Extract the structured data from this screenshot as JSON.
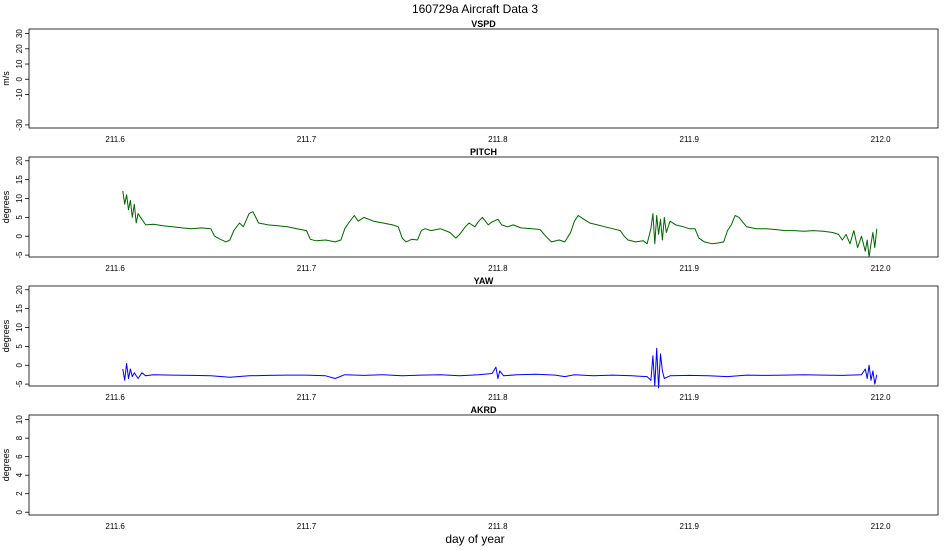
{
  "title": "160729a   Aircraft Data 3",
  "xlabel": "day of year",
  "chart_data": [
    {
      "type": "line",
      "title": "VSPD",
      "ylabel": "m/s",
      "xlim": [
        211.555,
        212.03
      ],
      "ylim": [
        -32,
        33
      ],
      "xticks": [
        211.6,
        211.7,
        211.8,
        211.9,
        212.0
      ],
      "xtick_labels": [
        "211.6",
        "211.7",
        "211.8",
        "211.9",
        "212.0"
      ],
      "yticks": [
        -30,
        -10,
        0,
        10,
        20,
        30
      ],
      "ytick_labels": [
        "-30",
        "-10",
        "0",
        "10",
        "20",
        "30"
      ],
      "grid": false,
      "series": []
    },
    {
      "type": "line",
      "title": "PITCH",
      "ylabel": "degrees",
      "xlim": [
        211.555,
        212.03
      ],
      "ylim": [
        -5.5,
        21
      ],
      "xticks": [
        211.6,
        211.7,
        211.8,
        211.9,
        212.0
      ],
      "xtick_labels": [
        "211.6",
        "211.7",
        "211.8",
        "211.9",
        "212.0"
      ],
      "yticks": [
        -5,
        0,
        5,
        10,
        15,
        20
      ],
      "ytick_labels": [
        "-5",
        "0",
        "5",
        "10",
        "15",
        "20"
      ],
      "grid": false,
      "series": [
        {
          "color": "#006400",
          "points": [
            [
              211.604,
              12.0
            ],
            [
              211.605,
              8.5
            ],
            [
              211.606,
              11.0
            ],
            [
              211.607,
              7.0
            ],
            [
              211.608,
              9.5
            ],
            [
              211.609,
              5.0
            ],
            [
              211.61,
              8.5
            ],
            [
              211.611,
              3.5
            ],
            [
              211.612,
              6.0
            ],
            [
              211.614,
              4.5
            ],
            [
              211.616,
              3.0
            ],
            [
              211.62,
              3.2
            ],
            [
              211.625,
              2.8
            ],
            [
              211.63,
              2.5
            ],
            [
              211.635,
              2.2
            ],
            [
              211.64,
              2.0
            ],
            [
              211.645,
              2.2
            ],
            [
              211.65,
              2.0
            ],
            [
              211.652,
              0.0
            ],
            [
              211.655,
              -0.8
            ],
            [
              211.658,
              -1.5
            ],
            [
              211.66,
              -1.0
            ],
            [
              211.662,
              1.5
            ],
            [
              211.665,
              3.5
            ],
            [
              211.667,
              2.5
            ],
            [
              211.67,
              6.0
            ],
            [
              211.672,
              6.5
            ],
            [
              211.675,
              3.5
            ],
            [
              211.68,
              3.0
            ],
            [
              211.685,
              2.8
            ],
            [
              211.69,
              2.5
            ],
            [
              211.695,
              2.0
            ],
            [
              211.7,
              1.5
            ],
            [
              211.702,
              -0.8
            ],
            [
              211.705,
              -1.2
            ],
            [
              211.71,
              -1.0
            ],
            [
              211.715,
              -1.5
            ],
            [
              211.718,
              -1.0
            ],
            [
              211.72,
              2.0
            ],
            [
              211.722,
              3.5
            ],
            [
              211.725,
              5.5
            ],
            [
              211.727,
              4.0
            ],
            [
              211.73,
              5.0
            ],
            [
              211.735,
              4.0
            ],
            [
              211.74,
              3.5
            ],
            [
              211.745,
              3.0
            ],
            [
              211.748,
              2.5
            ],
            [
              211.75,
              -0.5
            ],
            [
              211.752,
              -1.5
            ],
            [
              211.755,
              -0.8
            ],
            [
              211.758,
              -1.0
            ],
            [
              211.76,
              1.5
            ],
            [
              211.762,
              2.0
            ],
            [
              211.765,
              1.5
            ],
            [
              211.77,
              2.0
            ],
            [
              211.775,
              1.0
            ],
            [
              211.778,
              -0.5
            ],
            [
              211.78,
              0.5
            ],
            [
              211.783,
              2.5
            ],
            [
              211.785,
              3.5
            ],
            [
              211.788,
              2.5
            ],
            [
              211.79,
              4.0
            ],
            [
              211.792,
              5.0
            ],
            [
              211.795,
              3.0
            ],
            [
              211.797,
              3.8
            ],
            [
              211.8,
              4.5
            ],
            [
              211.802,
              3.0
            ],
            [
              211.805,
              2.5
            ],
            [
              211.808,
              3.0
            ],
            [
              211.812,
              2.2
            ],
            [
              211.818,
              2.0
            ],
            [
              211.822,
              1.8
            ],
            [
              211.825,
              0.0
            ],
            [
              211.828,
              -1.5
            ],
            [
              211.832,
              -1.0
            ],
            [
              211.835,
              -1.5
            ],
            [
              211.838,
              1.0
            ],
            [
              211.84,
              4.0
            ],
            [
              211.842,
              5.5
            ],
            [
              211.845,
              4.5
            ],
            [
              211.848,
              3.5
            ],
            [
              211.852,
              3.0
            ],
            [
              211.856,
              2.5
            ],
            [
              211.86,
              2.0
            ],
            [
              211.864,
              1.5
            ],
            [
              211.866,
              0.0
            ],
            [
              211.868,
              -1.0
            ],
            [
              211.872,
              -1.5
            ],
            [
              211.876,
              -1.2
            ],
            [
              211.878,
              -2.0
            ],
            [
              211.88,
              2.0
            ],
            [
              211.881,
              6.0
            ],
            [
              211.882,
              -2.0
            ],
            [
              211.883,
              5.5
            ],
            [
              211.884,
              0.5
            ],
            [
              211.885,
              4.5
            ],
            [
              211.886,
              -1.0
            ],
            [
              211.887,
              5.0
            ],
            [
              211.888,
              1.0
            ],
            [
              211.89,
              4.0
            ],
            [
              211.893,
              3.0
            ],
            [
              211.897,
              2.5
            ],
            [
              211.9,
              2.0
            ],
            [
              211.903,
              2.0
            ],
            [
              211.905,
              -0.5
            ],
            [
              211.908,
              -1.5
            ],
            [
              211.912,
              -2.0
            ],
            [
              211.915,
              -1.8
            ],
            [
              211.918,
              -1.5
            ],
            [
              211.92,
              1.5
            ],
            [
              211.922,
              3.0
            ],
            [
              211.924,
              5.5
            ],
            [
              211.926,
              5.0
            ],
            [
              211.93,
              2.5
            ],
            [
              211.935,
              2.0
            ],
            [
              211.94,
              2.0
            ],
            [
              211.945,
              1.8
            ],
            [
              211.95,
              1.5
            ],
            [
              211.955,
              1.5
            ],
            [
              211.96,
              1.3
            ],
            [
              211.965,
              1.5
            ],
            [
              211.97,
              1.3
            ],
            [
              211.975,
              1.0
            ],
            [
              211.978,
              0.5
            ],
            [
              211.98,
              -1.0
            ],
            [
              211.982,
              0.5
            ],
            [
              211.984,
              -2.0
            ],
            [
              211.986,
              1.5
            ],
            [
              211.988,
              -3.0
            ],
            [
              211.99,
              0.0
            ],
            [
              211.992,
              -4.0
            ],
            [
              211.993,
              -1.0
            ],
            [
              211.994,
              -5.5
            ],
            [
              211.995,
              -2.0
            ],
            [
              211.996,
              1.0
            ],
            [
              211.997,
              -3.0
            ],
            [
              211.998,
              2.0
            ]
          ]
        }
      ]
    },
    {
      "type": "line",
      "title": "YAW",
      "ylabel": "degrees",
      "xlim": [
        211.555,
        212.03
      ],
      "ylim": [
        -5.5,
        21
      ],
      "xticks": [
        211.6,
        211.7,
        211.8,
        211.9,
        212.0
      ],
      "xtick_labels": [
        "211.6",
        "211.7",
        "211.8",
        "211.9",
        "212.0"
      ],
      "yticks": [
        -5,
        0,
        5,
        10,
        15,
        20
      ],
      "ytick_labels": [
        "-5",
        "0",
        "5",
        "10",
        "15",
        "20"
      ],
      "grid": false,
      "series": [
        {
          "color": "#0000ff",
          "points": [
            [
              211.604,
              -1.0
            ],
            [
              211.605,
              -4.0
            ],
            [
              211.606,
              0.5
            ],
            [
              211.607,
              -3.5
            ],
            [
              211.608,
              -1.0
            ],
            [
              211.609,
              -3.0
            ],
            [
              211.61,
              -2.0
            ],
            [
              211.612,
              -3.5
            ],
            [
              211.614,
              -2.0
            ],
            [
              211.616,
              -2.8
            ],
            [
              211.62,
              -2.5
            ],
            [
              211.63,
              -2.6
            ],
            [
              211.64,
              -2.7
            ],
            [
              211.65,
              -2.8
            ],
            [
              211.66,
              -3.2
            ],
            [
              211.67,
              -2.8
            ],
            [
              211.68,
              -2.7
            ],
            [
              211.69,
              -2.6
            ],
            [
              211.7,
              -2.6
            ],
            [
              211.71,
              -2.8
            ],
            [
              211.715,
              -3.5
            ],
            [
              211.72,
              -2.5
            ],
            [
              211.73,
              -2.7
            ],
            [
              211.74,
              -2.5
            ],
            [
              211.75,
              -2.8
            ],
            [
              211.76,
              -2.6
            ],
            [
              211.77,
              -2.5
            ],
            [
              211.78,
              -2.8
            ],
            [
              211.79,
              -2.5
            ],
            [
              211.797,
              -2.2
            ],
            [
              211.799,
              -0.5
            ],
            [
              211.8,
              -3.5
            ],
            [
              211.801,
              -1.5
            ],
            [
              211.803,
              -2.8
            ],
            [
              211.81,
              -2.5
            ],
            [
              211.82,
              -2.4
            ],
            [
              211.83,
              -2.6
            ],
            [
              211.835,
              -3.0
            ],
            [
              211.84,
              -2.5
            ],
            [
              211.85,
              -2.8
            ],
            [
              211.86,
              -2.6
            ],
            [
              211.87,
              -2.8
            ],
            [
              211.878,
              -3.0
            ],
            [
              211.88,
              -4.0
            ],
            [
              211.881,
              2.5
            ],
            [
              211.882,
              -5.5
            ],
            [
              211.883,
              4.5
            ],
            [
              211.884,
              -6.0
            ],
            [
              211.885,
              3.0
            ],
            [
              211.886,
              -1.5
            ],
            [
              211.887,
              -3.5
            ],
            [
              211.89,
              -2.8
            ],
            [
              211.9,
              -2.7
            ],
            [
              211.91,
              -2.8
            ],
            [
              211.92,
              -3.0
            ],
            [
              211.93,
              -2.6
            ],
            [
              211.94,
              -2.7
            ],
            [
              211.95,
              -2.6
            ],
            [
              211.96,
              -2.5
            ],
            [
              211.97,
              -2.6
            ],
            [
              211.98,
              -2.7
            ],
            [
              211.99,
              -2.5
            ],
            [
              211.992,
              -1.0
            ],
            [
              211.993,
              -3.5
            ],
            [
              211.994,
              0.0
            ],
            [
              211.995,
              -4.0
            ],
            [
              211.996,
              -1.5
            ],
            [
              211.997,
              -5.0
            ],
            [
              211.998,
              -2.5
            ]
          ]
        }
      ]
    },
    {
      "type": "line",
      "title": "AKRD",
      "ylabel": "degrees",
      "xlim": [
        211.555,
        212.03
      ],
      "ylim": [
        -0.3,
        10.5
      ],
      "xticks": [
        211.6,
        211.7,
        211.8,
        211.9,
        212.0
      ],
      "xtick_labels": [
        "211.6",
        "211.7",
        "211.8",
        "211.9",
        "212.0"
      ],
      "yticks": [
        0,
        2,
        4,
        6,
        8,
        10
      ],
      "ytick_labels": [
        "0",
        "2",
        "4",
        "6",
        "8",
        "10"
      ],
      "grid": false,
      "series": []
    }
  ]
}
